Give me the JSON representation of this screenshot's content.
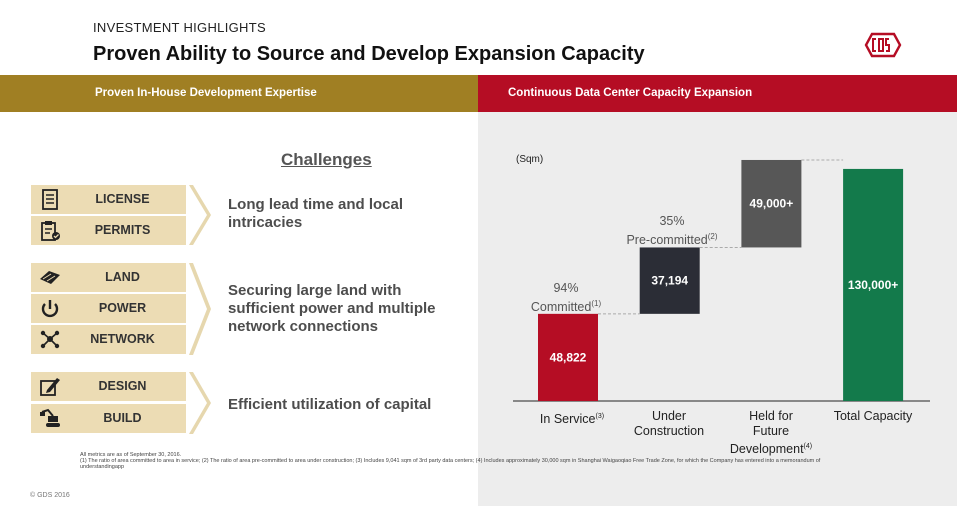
{
  "header": {
    "kicker": "INVESTMENT HIGHLIGHTS",
    "title": "Proven Ability to Source and Develop Expansion Capacity",
    "logo_icon": "gds-logo-icon",
    "logo_color": "#b50d24"
  },
  "bands": {
    "left": "Proven In-House Development Expertise",
    "right": "Continuous Data Center Capacity Expansion",
    "left_color": "#a07f23",
    "right_color": "#b50d24"
  },
  "challenges": {
    "heading": "Challenges",
    "groups": [
      {
        "items": [
          {
            "label": "LICENSE",
            "icon": "document-icon"
          },
          {
            "label": "PERMITS",
            "icon": "clipboard-check-icon"
          }
        ],
        "description": [
          "Long lead time and local",
          "intricacies"
        ]
      },
      {
        "items": [
          {
            "label": "LAND",
            "icon": "land-parcel-icon"
          },
          {
            "label": "POWER",
            "icon": "power-icon"
          },
          {
            "label": "NETWORK",
            "icon": "network-icon"
          }
        ],
        "description": [
          "Securing large land with",
          "sufficient power and multiple",
          "network connections"
        ]
      },
      {
        "items": [
          {
            "label": "DESIGN",
            "icon": "design-pencil-icon"
          },
          {
            "label": "BUILD",
            "icon": "excavator-icon"
          }
        ],
        "description": [
          "Efficient utilization of capital"
        ]
      }
    ]
  },
  "chart_data": {
    "type": "bar",
    "subtype": "waterfall",
    "unit_label": "(Sqm)",
    "categories": [
      {
        "label": [
          "In Service"
        ],
        "sup": "(3)"
      },
      {
        "label": [
          "Under",
          "Construction"
        ],
        "sup": ""
      },
      {
        "label": [
          "Held for",
          "Future",
          "Development"
        ],
        "sup": "(4)"
      },
      {
        "label": [
          "Total Capacity"
        ],
        "sup": ""
      }
    ],
    "values": [
      48822,
      37194,
      49000,
      130000
    ],
    "data_labels": [
      "48,822",
      "37,194",
      "49,000+",
      "130,000+"
    ],
    "colors": [
      "#b50d24",
      "#2b2d36",
      "#575757",
      "#137a4b"
    ],
    "annotations": [
      {
        "pct": "94%",
        "text": "Committed",
        "sup": "(1)"
      },
      {
        "pct": "35%",
        "text": "Pre-committed",
        "sup": "(2)"
      }
    ],
    "ylim": [
      0,
      135000
    ],
    "grid": false,
    "legend": "none"
  },
  "footnotes": {
    "line1": "All metrics are as of September 30, 2016.",
    "line2": "(1)   The ratio of area committed to area in service; (2)   The ratio of area pre-committed to area under construction; (3)  Includes 9,041 sqm of 3rd party data centers; (4)   Includes approximately 30,000 sqm in Shanghai Waigaoqiao Free Trade Zone, for which the Company has entered into a memorandum of understandingapp"
  },
  "copyright": "© GDS 2016"
}
